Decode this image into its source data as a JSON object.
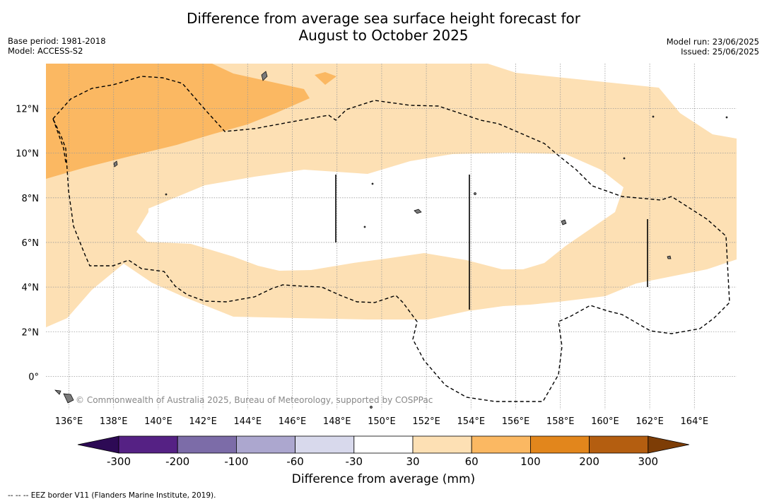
{
  "header": {
    "title_line1": "Difference from average sea surface height forecast for",
    "title_line2": "August to October 2025",
    "base_period": "Base period: 1981-2018",
    "model": "Model: ACCESS-S2",
    "model_run": "Model run: 23/06/2025",
    "issued": "Issued: 25/06/2025"
  },
  "map": {
    "lon_range": [
      135,
      166
    ],
    "lat_range": [
      -1.5,
      14
    ],
    "lon_ticks": [
      "136°E",
      "138°E",
      "140°E",
      "142°E",
      "144°E",
      "146°E",
      "148°E",
      "150°E",
      "152°E",
      "154°E",
      "156°E",
      "158°E",
      "160°E",
      "162°E",
      "164°E"
    ],
    "lat_ticks": [
      "12°N",
      "10°N",
      "8°N",
      "6°N",
      "4°N",
      "2°N",
      "0°"
    ],
    "credit": "© Commonwealth of Australia 2025, Bureau of Meteorology, supported by COSPPac",
    "colors": {
      "light_orange": "#fde0b4",
      "medium_orange": "#fbb862",
      "land": "#7a7a7a"
    }
  },
  "colorbar": {
    "title": "Difference from average (mm)",
    "ticks": [
      "-300",
      "-200",
      "-100",
      "-60",
      "-30",
      "30",
      "60",
      "100",
      "200",
      "300"
    ],
    "colors": [
      "#2d0a55",
      "#552184",
      "#7c6ca8",
      "#aca7cf",
      "#d8d9ec",
      "#ffffff",
      "#fde0b4",
      "#fbb862",
      "#e2861c",
      "#b45e10",
      "#7d3d06"
    ]
  },
  "footnote": "-- -- -- EEZ border V11 (Flanders Marine Institute, 2019)."
}
